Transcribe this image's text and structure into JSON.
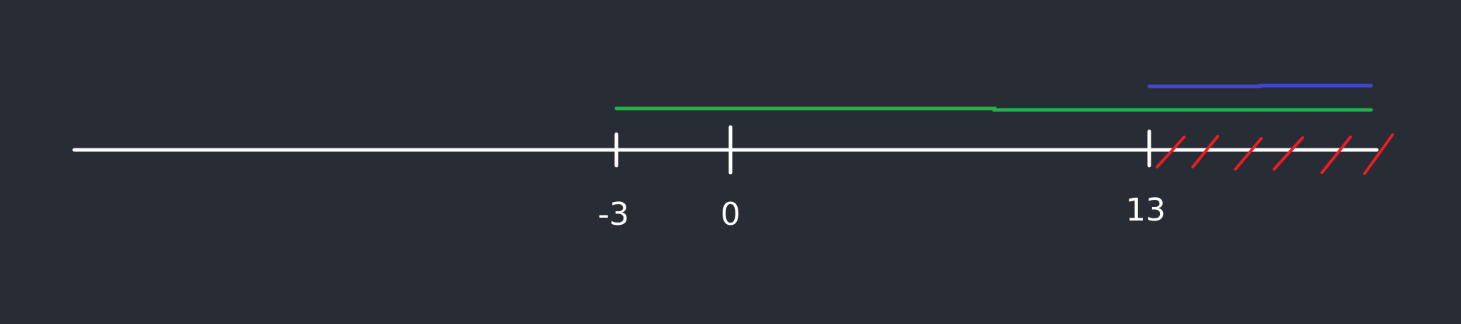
{
  "number_line": {
    "ticks": [
      {
        "value": -3,
        "label": "-3"
      },
      {
        "value": 0,
        "label": "0"
      },
      {
        "value": 13,
        "label": "13"
      }
    ],
    "intervals": [
      {
        "id": "green-interval",
        "from": -3,
        "to": "+inf",
        "color": "#22b24c"
      },
      {
        "id": "blue-interval",
        "from": 13,
        "to": "+inf",
        "color": "#3f48cc"
      }
    ],
    "excluded_region": {
      "from": 13,
      "to": "+inf",
      "hatch_color": "#ed1c24"
    },
    "axis_color": "#ffffff"
  }
}
